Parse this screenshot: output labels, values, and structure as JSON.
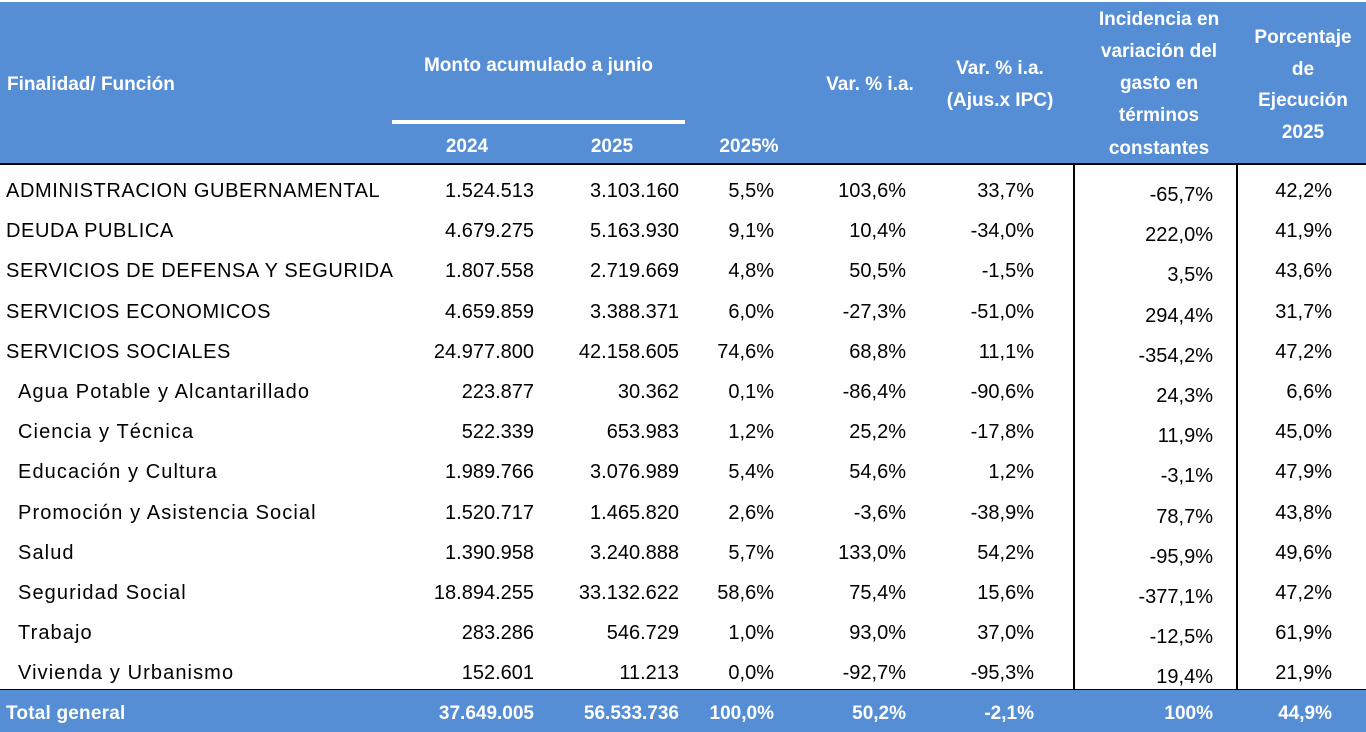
{
  "header": {
    "finalidad": "Finalidad/ Función",
    "monto": "Monto acumulado a junio",
    "y2024": "2024",
    "y2025": "2025",
    "share": "2025%",
    "var": "Var. % i.a.",
    "var_ipc_1": "Var. % i.a.",
    "var_ipc_2": "(Ajus.x IPC)",
    "inc_1": "Incidencia en",
    "inc_2": "variación del",
    "inc_3": "gasto en",
    "inc_4": "términos",
    "inc_5": "constantes",
    "pct_1": "Porcentaje",
    "pct_2": "de",
    "pct_3": "Ejecución",
    "pct_4": "2025"
  },
  "rows": [
    {
      "label": "ADMINISTRACION GUBERNAMENTAL",
      "v2024": "1.524.513",
      "v2025": "3.103.160",
      "share": "5,5%",
      "var": "103,6%",
      "var_ipc": "33,7%",
      "incidencia": "-65,7%",
      "ejecucion": "42,2%"
    },
    {
      "label": "DEUDA PUBLICA",
      "v2024": "4.679.275",
      "v2025": "5.163.930",
      "share": "9,1%",
      "var": "10,4%",
      "var_ipc": "-34,0%",
      "incidencia": "222,0%",
      "ejecucion": "41,9%"
    },
    {
      "label": "SERVICIOS DE DEFENSA Y SEGURIDAD",
      "v2024": "1.807.558",
      "v2025": "2.719.669",
      "share": "4,8%",
      "var": "50,5%",
      "var_ipc": "-1,5%",
      "incidencia": "3,5%",
      "ejecucion": "43,6%"
    },
    {
      "label": "SERVICIOS ECONOMICOS",
      "v2024": "4.659.859",
      "v2025": "3.388.371",
      "share": "6,0%",
      "var": "-27,3%",
      "var_ipc": "-51,0%",
      "incidencia": "294,4%",
      "ejecucion": "31,7%"
    },
    {
      "label": "SERVICIOS SOCIALES",
      "v2024": "24.977.800",
      "v2025": "42.158.605",
      "share": "74,6%",
      "var": "68,8%",
      "var_ipc": "11,1%",
      "incidencia": "-354,2%",
      "ejecucion": "47,2%"
    },
    {
      "label": "Agua Potable y Alcantarillado",
      "v2024": "223.877",
      "v2025": "30.362",
      "share": "0,1%",
      "var": "-86,4%",
      "var_ipc": "-90,6%",
      "incidencia": "24,3%",
      "ejecucion": "6,6%"
    },
    {
      "label": "Ciencia y Técnica",
      "v2024": "522.339",
      "v2025": "653.983",
      "share": "1,2%",
      "var": "25,2%",
      "var_ipc": "-17,8%",
      "incidencia": "11,9%",
      "ejecucion": "45,0%"
    },
    {
      "label": "Educación y Cultura",
      "v2024": "1.989.766",
      "v2025": "3.076.989",
      "share": "5,4%",
      "var": "54,6%",
      "var_ipc": "1,2%",
      "incidencia": "-3,1%",
      "ejecucion": "47,9%"
    },
    {
      "label": "Promoción y Asistencia Social",
      "v2024": "1.520.717",
      "v2025": "1.465.820",
      "share": "2,6%",
      "var": "-3,6%",
      "var_ipc": "-38,9%",
      "incidencia": "78,7%",
      "ejecucion": "43,8%"
    },
    {
      "label": "Salud",
      "v2024": "1.390.958",
      "v2025": "3.240.888",
      "share": "5,7%",
      "var": "133,0%",
      "var_ipc": "54,2%",
      "incidencia": "-95,9%",
      "ejecucion": "49,6%"
    },
    {
      "label": "Seguridad Social",
      "v2024": "18.894.255",
      "v2025": "33.132.622",
      "share": "58,6%",
      "var": "75,4%",
      "var_ipc": "15,6%",
      "incidencia": "-377,1%",
      "ejecucion": "47,2%"
    },
    {
      "label": "Trabajo",
      "v2024": "283.286",
      "v2025": "546.729",
      "share": "1,0%",
      "var": "93,0%",
      "var_ipc": "37,0%",
      "incidencia": "-12,5%",
      "ejecucion": "61,9%"
    },
    {
      "label": "Vivienda y Urbanismo",
      "v2024": "152.601",
      "v2025": "11.213",
      "share": "0,0%",
      "var": "-92,7%",
      "var_ipc": "-95,3%",
      "incidencia": "19,4%",
      "ejecucion": "21,9%"
    }
  ],
  "total": {
    "label": "Total general",
    "v2024": "37.649.005",
    "v2025": "56.533.736",
    "share": "100,0%",
    "var": "50,2%",
    "var_ipc": "-2,1%",
    "incidencia": "100%",
    "ejecucion": "44,9%"
  },
  "colors": {
    "header_bg": "#558ed5",
    "header_text": "#ffffff",
    "body_text": "#000000"
  }
}
